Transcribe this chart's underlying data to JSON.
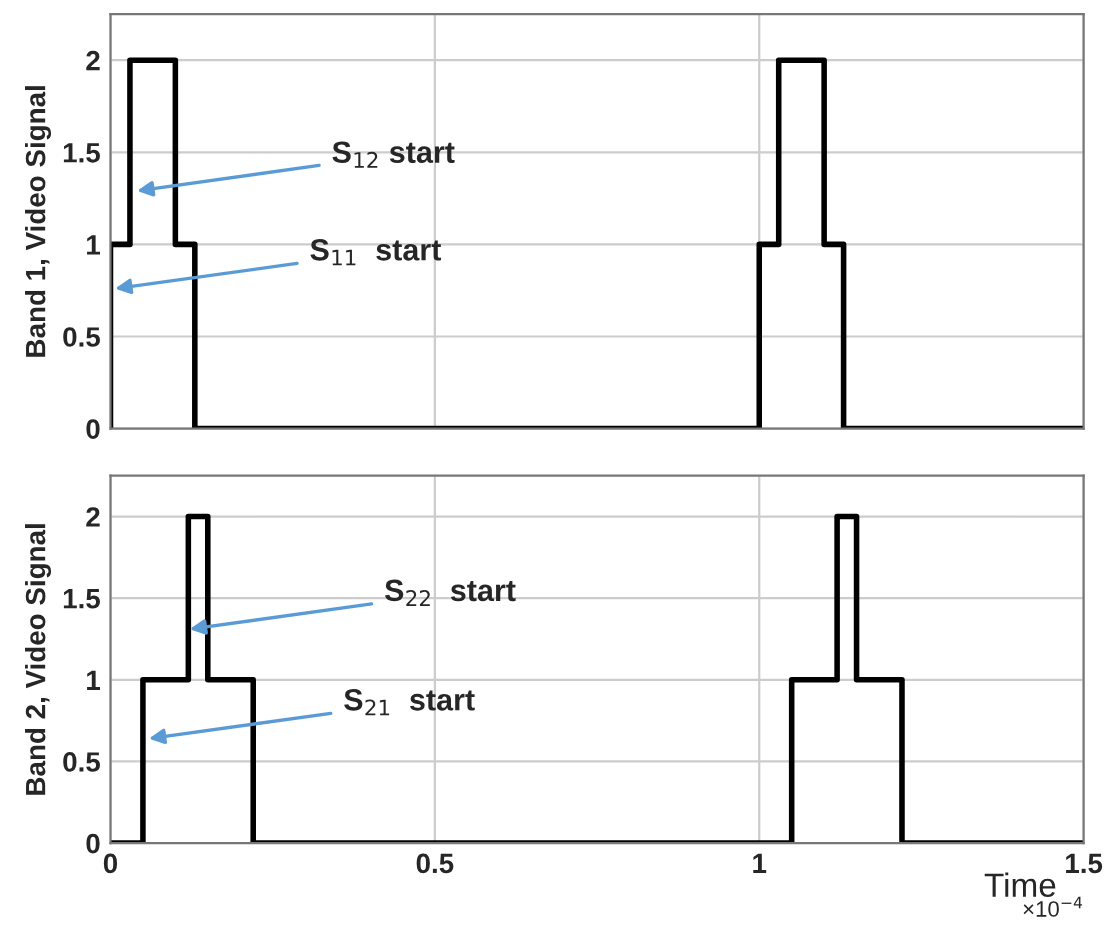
{
  "chart_data": [
    {
      "type": "line",
      "ylabel": "Band 1, Video Signal",
      "xlim": [
        0,
        1.5
      ],
      "ylim": [
        0,
        2.25
      ],
      "xticks": [
        0,
        0.5,
        1,
        1.5
      ],
      "yticks": [
        0,
        0.5,
        1,
        1.5,
        2
      ],
      "grid": true,
      "tick_labels": "y",
      "x": [
        0,
        0,
        0.03,
        0.03,
        0.1,
        0.1,
        0.13,
        0.13,
        1.0,
        1.0,
        1.03,
        1.03,
        1.1,
        1.1,
        1.13,
        1.13,
        1.5
      ],
      "series": [
        {
          "color": "#000000",
          "values": [
            0,
            1,
            1,
            2,
            2,
            1,
            1,
            0,
            0,
            1,
            1,
            2,
            2,
            1,
            1,
            0,
            0
          ]
        }
      ],
      "annotations": [
        {
          "text": "S$_{12}$ start",
          "x": 0.041,
          "y": 1.29
        },
        {
          "text": "S$_{11}$  start",
          "x": 0.007,
          "y": 0.76
        }
      ]
    },
    {
      "type": "line",
      "ylabel": "Band 2, Video Signal",
      "xlabel": "Time",
      "xlim": [
        0,
        1.5
      ],
      "ylim": [
        0,
        2.25
      ],
      "xticks": [
        0,
        0.5,
        1,
        1.5
      ],
      "yticks": [
        0,
        0.5,
        1,
        1.5,
        2
      ],
      "grid": true,
      "x": [
        0,
        0.05,
        0.05,
        0.12,
        0.12,
        0.15,
        0.15,
        0.22,
        0.22,
        1.05,
        1.05,
        1.12,
        1.12,
        1.15,
        1.15,
        1.22,
        1.22,
        1.5
      ],
      "series": [
        {
          "color": "#000000",
          "values": [
            0,
            0,
            1,
            1,
            2,
            2,
            1,
            1,
            0,
            0,
            1,
            1,
            2,
            2,
            1,
            1,
            0,
            0
          ]
        }
      ],
      "annotations": [
        {
          "text": "S$_{22}$  start",
          "x": 0.122,
          "y": 1.31
        },
        {
          "text": "S$_{21}$  start",
          "x": 0.059,
          "y": 0.64
        },
        "×10$^{−4}$"
      ]
    }
  ]
}
